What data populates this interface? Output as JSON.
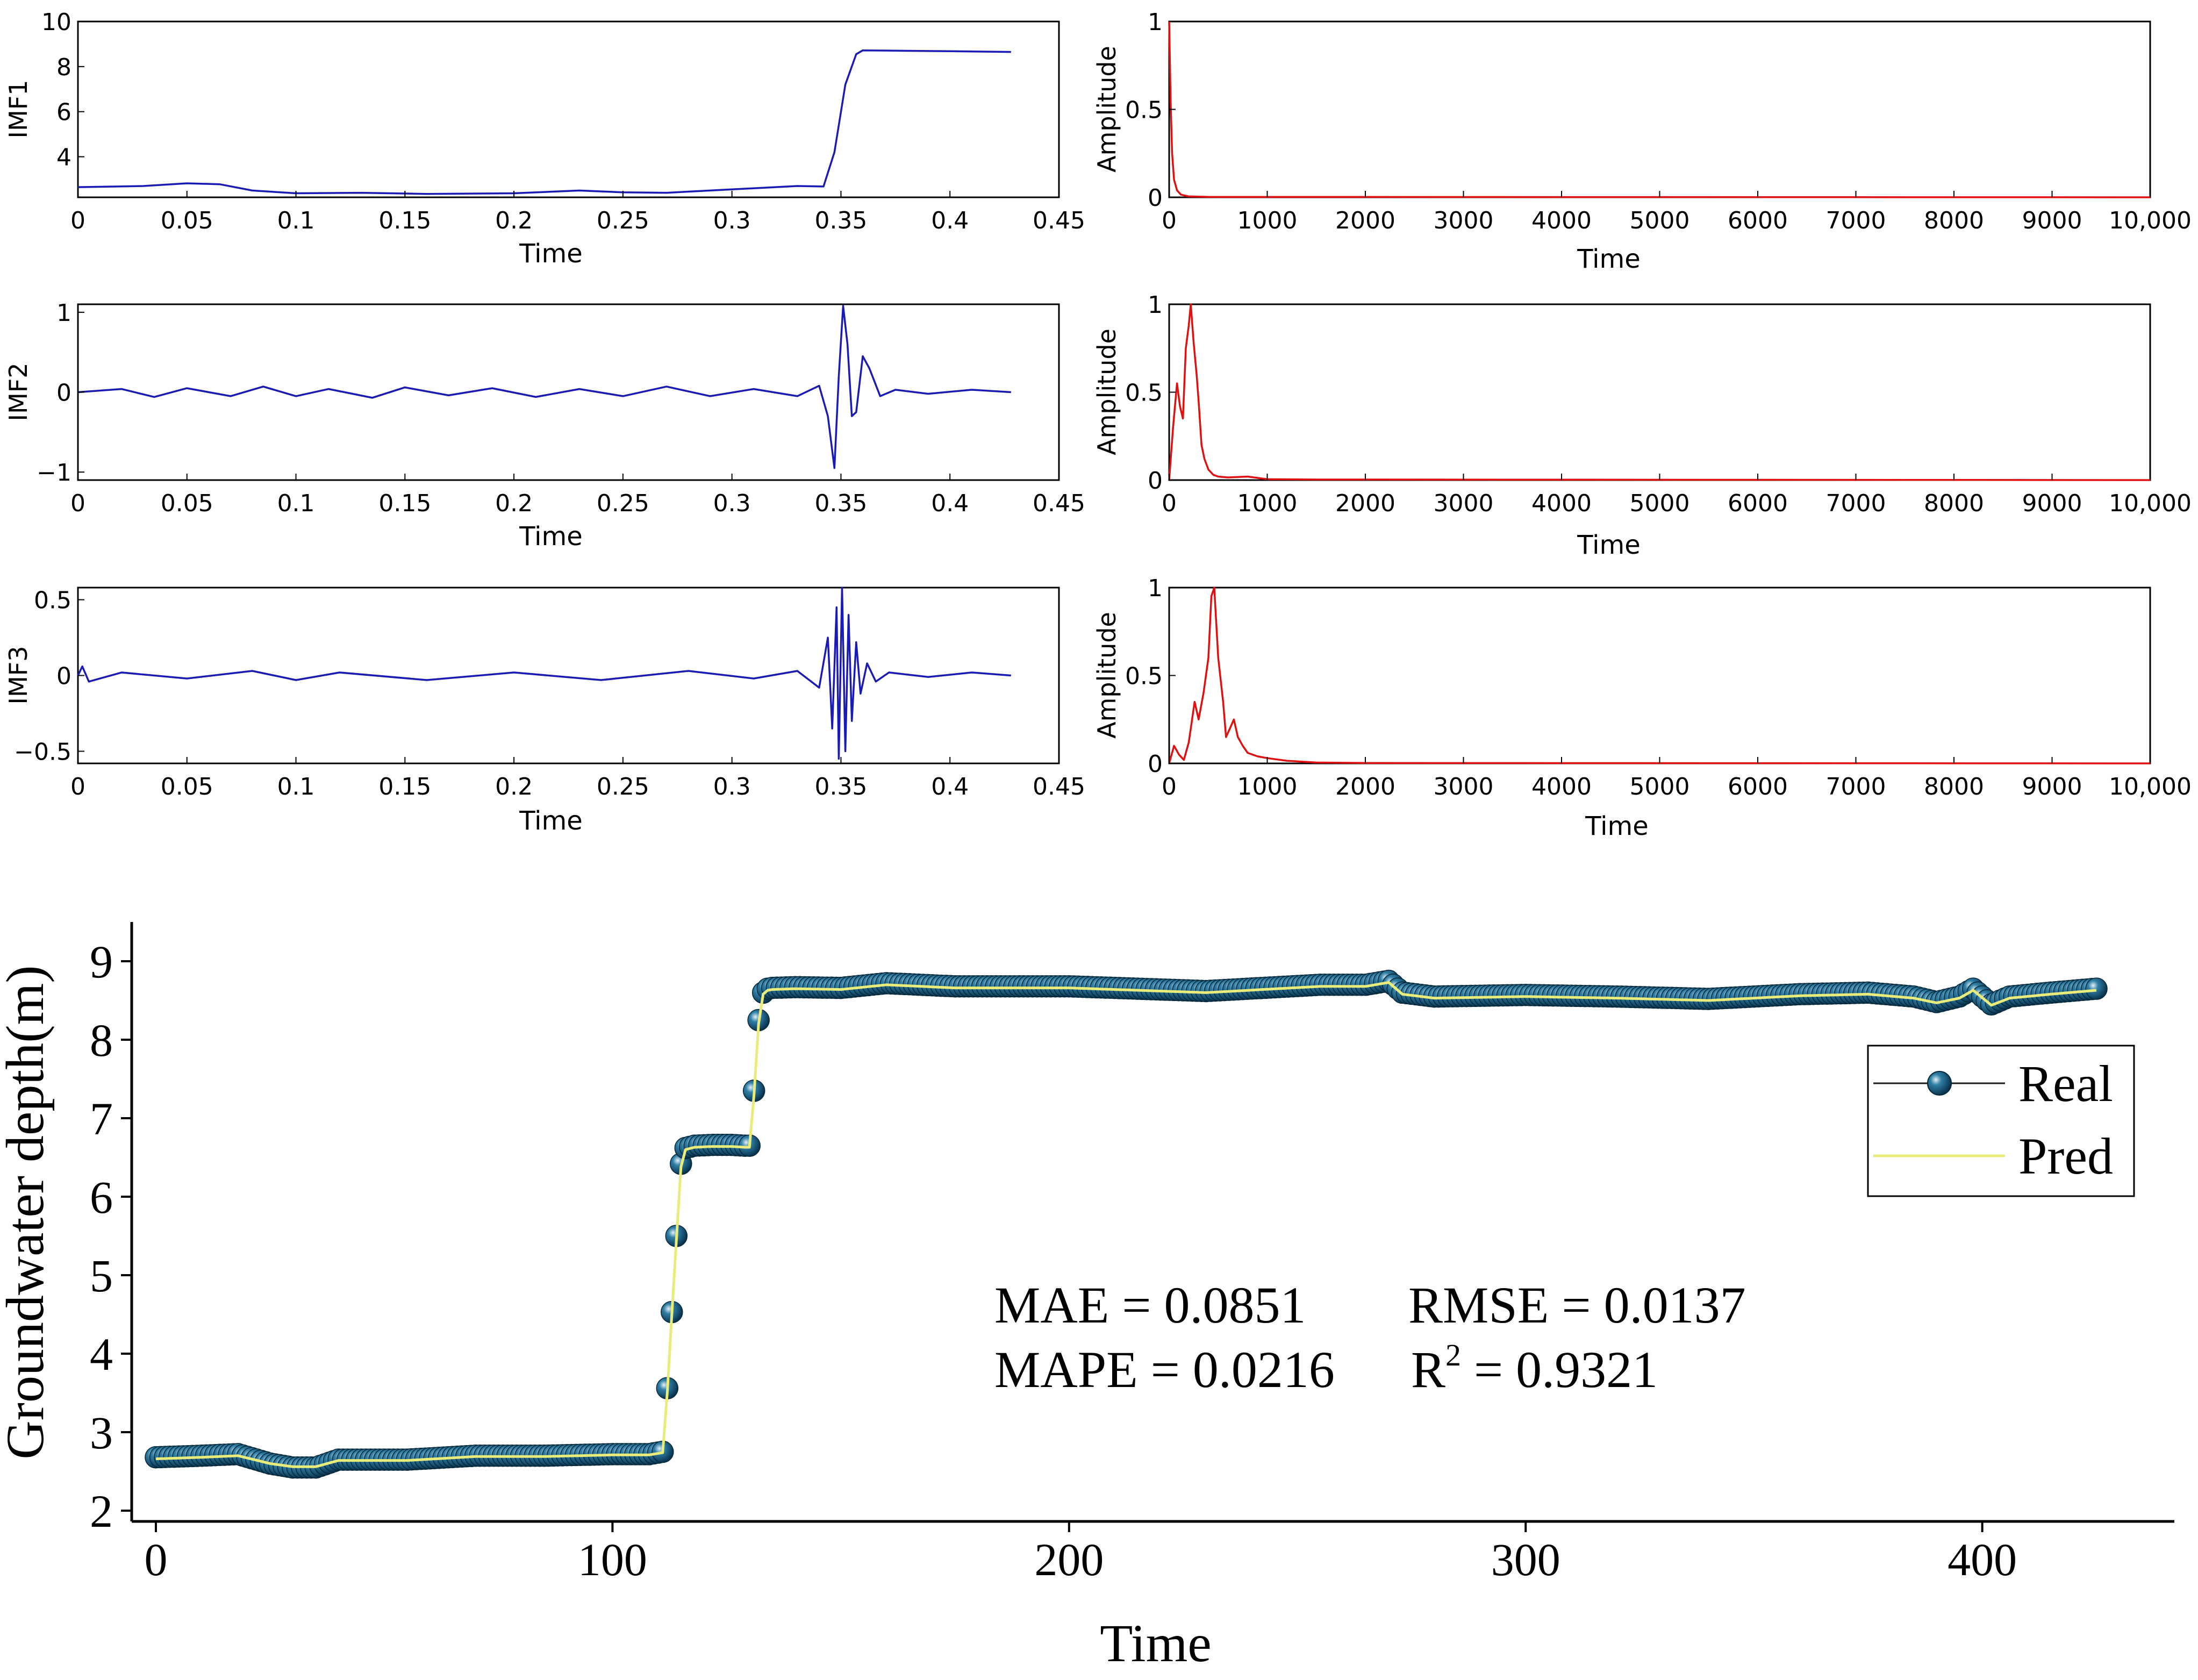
{
  "colors": {
    "imf_line": "#1a1ab4",
    "spectrum_line": "#e01010",
    "real_marker": "#0f4d6e",
    "real_line": "#1b1b1b",
    "pred_line": "#e9ec7a",
    "axis": "#000000"
  },
  "chart_data": [
    {
      "id": "imf1",
      "type": "line",
      "ylabel": "IMF1",
      "xlabel": "Time",
      "xlim": [
        0,
        0.45
      ],
      "ylim": [
        2.2,
        10
      ],
      "xticks": [
        0,
        0.05,
        0.1,
        0.15,
        0.2,
        0.25,
        0.3,
        0.35,
        0.4,
        0.45
      ],
      "xtick_labels": [
        "0",
        "0.05",
        "0.1",
        "0.15",
        "0.2",
        "0.25",
        "0.3",
        "0.35",
        "0.4",
        "0.45"
      ],
      "yticks": [
        4,
        6,
        8,
        10
      ],
      "ytick_labels": [
        "4",
        "6",
        "8",
        "10"
      ],
      "x": [
        0,
        0.03,
        0.05,
        0.065,
        0.08,
        0.1,
        0.13,
        0.16,
        0.2,
        0.23,
        0.25,
        0.27,
        0.3,
        0.33,
        0.342,
        0.347,
        0.352,
        0.357,
        0.36,
        0.38,
        0.4,
        0.428
      ],
      "values": [
        2.65,
        2.7,
        2.82,
        2.78,
        2.5,
        2.38,
        2.4,
        2.35,
        2.38,
        2.5,
        2.42,
        2.4,
        2.55,
        2.7,
        2.68,
        4.2,
        7.2,
        8.55,
        8.72,
        8.7,
        8.68,
        8.65
      ]
    },
    {
      "id": "imf1-spectrum",
      "type": "line",
      "ylabel": "Amplitude",
      "xlabel": "Time",
      "xlim": [
        0,
        10000
      ],
      "ylim": [
        0,
        1
      ],
      "xticks": [
        0,
        1000,
        2000,
        3000,
        4000,
        5000,
        6000,
        7000,
        8000,
        9000,
        10000
      ],
      "xtick_labels": [
        "0",
        "1000",
        "2000",
        "3000",
        "4000",
        "5000",
        "6000",
        "7000",
        "8000",
        "9000",
        "10,000"
      ],
      "yticks": [
        0,
        0.5,
        1
      ],
      "ytick_labels": [
        "0",
        "0.5",
        "1"
      ],
      "x": [
        0,
        15,
        30,
        50,
        80,
        120,
        200,
        400,
        10000
      ],
      "values": [
        1.0,
        0.55,
        0.25,
        0.1,
        0.04,
        0.015,
        0.005,
        0.002,
        0.0
      ]
    },
    {
      "id": "imf2",
      "type": "line",
      "ylabel": "IMF2",
      "xlabel": "Time",
      "xlim": [
        0,
        0.45
      ],
      "ylim": [
        -1.1,
        1.1
      ],
      "xticks": [
        0,
        0.05,
        0.1,
        0.15,
        0.2,
        0.25,
        0.3,
        0.35,
        0.4,
        0.45
      ],
      "xtick_labels": [
        "0",
        "0.05",
        "0.1",
        "0.15",
        "0.2",
        "0.25",
        "0.3",
        "0.35",
        "0.4",
        "0.45"
      ],
      "yticks": [
        -1,
        0,
        1
      ],
      "ytick_labels": [
        "−1",
        "0",
        "1"
      ],
      "x": [
        0,
        0.02,
        0.035,
        0.05,
        0.07,
        0.085,
        0.1,
        0.115,
        0.135,
        0.15,
        0.17,
        0.19,
        0.21,
        0.23,
        0.25,
        0.27,
        0.29,
        0.31,
        0.33,
        0.34,
        0.344,
        0.347,
        0.349,
        0.351,
        0.353,
        0.355,
        0.357,
        0.36,
        0.363,
        0.368,
        0.375,
        0.39,
        0.41,
        0.428
      ],
      "values": [
        0.0,
        0.04,
        -0.06,
        0.05,
        -0.05,
        0.07,
        -0.05,
        0.04,
        -0.07,
        0.06,
        -0.04,
        0.05,
        -0.06,
        0.04,
        -0.05,
        0.07,
        -0.05,
        0.04,
        -0.05,
        0.08,
        -0.3,
        -0.95,
        0.2,
        1.08,
        0.6,
        -0.3,
        -0.25,
        0.45,
        0.3,
        -0.05,
        0.03,
        -0.02,
        0.03,
        0.0
      ]
    },
    {
      "id": "imf2-spectrum",
      "type": "line",
      "ylabel": "Amplitude",
      "xlabel": "Time",
      "xlim": [
        0,
        10000
      ],
      "ylim": [
        0,
        1
      ],
      "xticks": [
        0,
        1000,
        2000,
        3000,
        4000,
        5000,
        6000,
        7000,
        8000,
        9000,
        10000
      ],
      "xtick_labels": [
        "0",
        "1000",
        "2000",
        "3000",
        "4000",
        "5000",
        "6000",
        "7000",
        "8000",
        "9000",
        "10,000"
      ],
      "yticks": [
        0,
        0.5,
        1
      ],
      "ytick_labels": [
        "0",
        "0.5",
        "1"
      ],
      "x": [
        0,
        40,
        80,
        110,
        140,
        170,
        200,
        220,
        250,
        280,
        300,
        330,
        360,
        400,
        450,
        500,
        600,
        800,
        1000,
        1500,
        10000
      ],
      "values": [
        0.0,
        0.3,
        0.55,
        0.42,
        0.35,
        0.75,
        0.88,
        1.0,
        0.78,
        0.6,
        0.45,
        0.2,
        0.12,
        0.06,
        0.03,
        0.02,
        0.015,
        0.02,
        0.005,
        0.003,
        0.0
      ]
    },
    {
      "id": "imf3",
      "type": "line",
      "ylabel": "IMF3",
      "xlabel": "Time",
      "xlim": [
        0,
        0.45
      ],
      "ylim": [
        -0.58,
        0.58
      ],
      "xticks": [
        0,
        0.05,
        0.1,
        0.15,
        0.2,
        0.25,
        0.3,
        0.35,
        0.4,
        0.45
      ],
      "xtick_labels": [
        "0",
        "0.05",
        "0.1",
        "0.15",
        "0.2",
        "0.25",
        "0.3",
        "0.35",
        "0.4",
        "0.45"
      ],
      "yticks": [
        -0.5,
        0,
        0.5
      ],
      "ytick_labels": [
        "−0.5",
        "0",
        "0.5"
      ],
      "x": [
        0,
        0.002,
        0.005,
        0.02,
        0.05,
        0.08,
        0.1,
        0.12,
        0.16,
        0.2,
        0.24,
        0.28,
        0.31,
        0.33,
        0.34,
        0.344,
        0.346,
        0.348,
        0.349,
        0.3505,
        0.352,
        0.3535,
        0.355,
        0.357,
        0.359,
        0.362,
        0.366,
        0.372,
        0.39,
        0.41,
        0.428
      ],
      "values": [
        0.0,
        0.06,
        -0.04,
        0.02,
        -0.02,
        0.03,
        -0.03,
        0.02,
        -0.03,
        0.02,
        -0.03,
        0.03,
        -0.02,
        0.03,
        -0.08,
        0.25,
        -0.35,
        0.45,
        -0.55,
        0.58,
        -0.5,
        0.4,
        -0.3,
        0.22,
        -0.12,
        0.08,
        -0.04,
        0.02,
        -0.01,
        0.02,
        0.0
      ]
    },
    {
      "id": "imf3-spectrum",
      "type": "line",
      "ylabel": "Amplitude",
      "xlabel": "Time",
      "xlim": [
        0,
        10000
      ],
      "ylim": [
        0,
        1
      ],
      "xticks": [
        0,
        1000,
        2000,
        3000,
        4000,
        5000,
        6000,
        7000,
        8000,
        9000,
        10000
      ],
      "xtick_labels": [
        "0",
        "1000",
        "2000",
        "3000",
        "4000",
        "5000",
        "6000",
        "7000",
        "8000",
        "9000",
        "10,000"
      ],
      "yticks": [
        0,
        0.5,
        1
      ],
      "ytick_labels": [
        "0",
        "0.5",
        "1"
      ],
      "x": [
        0,
        50,
        100,
        150,
        200,
        260,
        300,
        350,
        400,
        430,
        460,
        500,
        550,
        580,
        620,
        660,
        700,
        750,
        800,
        900,
        1000,
        1200,
        1500,
        2000,
        10000
      ],
      "values": [
        0.0,
        0.1,
        0.05,
        0.02,
        0.12,
        0.35,
        0.25,
        0.4,
        0.6,
        0.95,
        1.0,
        0.6,
        0.35,
        0.15,
        0.2,
        0.25,
        0.15,
        0.1,
        0.06,
        0.04,
        0.03,
        0.015,
        0.005,
        0.002,
        0.0
      ]
    },
    {
      "id": "groundwater",
      "type": "line",
      "ylabel": "Groundwater depth(m)",
      "xlabel": "Time",
      "xlim": [
        -5,
        430
      ],
      "ylim": [
        2,
        9.6
      ],
      "xticks": [
        0,
        100,
        200,
        300,
        400
      ],
      "xtick_labels": [
        "0",
        "100",
        "200",
        "300",
        "400"
      ],
      "yticks": [
        2,
        3,
        4,
        5,
        6,
        7,
        8,
        9
      ],
      "ytick_labels": [
        "2",
        "3",
        "4",
        "5",
        "6",
        "7",
        "8",
        "9"
      ],
      "legend": {
        "position": "right",
        "entries": [
          "Real",
          "Pred"
        ]
      },
      "metrics": {
        "mae": "MAE = 0.0851",
        "rmse": "RMSE = 0.0137",
        "mape": "MAPE = 0.0216",
        "r2_base": "R",
        "r2_exp": "2",
        "r2_value": " = 0.9321"
      },
      "series": [
        {
          "name": "Real",
          "x": [
            0,
            10,
            18,
            25,
            30,
            35,
            40,
            55,
            70,
            85,
            100,
            108,
            111,
            112,
            113,
            114,
            115,
            116,
            118,
            122,
            126,
            129,
            130,
            131,
            132,
            133,
            134,
            135,
            140,
            150,
            160,
            175,
            200,
            230,
            255,
            265,
            270,
            273,
            280,
            300,
            320,
            340,
            360,
            375,
            385,
            390,
            395,
            398,
            402,
            406,
            415,
            425
          ],
          "values": [
            2.68,
            2.7,
            2.72,
            2.6,
            2.55,
            2.55,
            2.65,
            2.65,
            2.7,
            2.7,
            2.72,
            2.72,
            2.75,
            3.56,
            4.53,
            5.5,
            6.42,
            6.62,
            6.65,
            6.66,
            6.66,
            6.65,
            6.65,
            7.35,
            8.25,
            8.6,
            8.65,
            8.66,
            8.67,
            8.66,
            8.72,
            8.68,
            8.68,
            8.62,
            8.7,
            8.7,
            8.75,
            8.6,
            8.55,
            8.57,
            8.55,
            8.52,
            8.58,
            8.6,
            8.55,
            8.48,
            8.55,
            8.65,
            8.45,
            8.55,
            8.6,
            8.65
          ]
        },
        {
          "name": "Pred",
          "x": [
            0,
            10,
            18,
            25,
            30,
            35,
            40,
            55,
            70,
            85,
            100,
            108,
            111,
            112,
            113,
            114,
            115,
            116,
            118,
            122,
            126,
            129,
            130,
            131,
            132,
            133,
            134,
            135,
            140,
            150,
            160,
            175,
            200,
            230,
            255,
            265,
            270,
            273,
            280,
            300,
            320,
            340,
            360,
            375,
            385,
            390,
            395,
            398,
            402,
            406,
            415,
            425
          ],
          "values": [
            2.66,
            2.68,
            2.7,
            2.6,
            2.56,
            2.56,
            2.64,
            2.64,
            2.69,
            2.69,
            2.71,
            2.71,
            2.74,
            3.5,
            4.5,
            5.45,
            6.38,
            6.6,
            6.63,
            6.64,
            6.64,
            6.63,
            6.63,
            7.3,
            8.2,
            8.58,
            8.63,
            8.64,
            8.65,
            8.64,
            8.7,
            8.66,
            8.66,
            8.6,
            8.68,
            8.68,
            8.73,
            8.58,
            8.53,
            8.55,
            8.53,
            8.5,
            8.56,
            8.58,
            8.53,
            8.47,
            8.53,
            8.63,
            8.44,
            8.53,
            8.58,
            8.63
          ]
        }
      ]
    }
  ]
}
